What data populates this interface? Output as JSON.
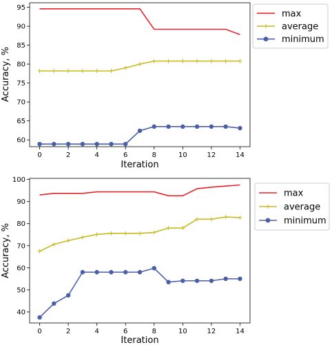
{
  "chart_data": [
    {
      "type": "line",
      "title": "",
      "xlabel": "Iteration",
      "ylabel": "Accuracy, %",
      "xlim": [
        -0.7,
        14.7
      ],
      "ylim": [
        58.2,
        96.2
      ],
      "xticks": [
        0,
        2,
        4,
        6,
        8,
        10,
        12,
        14
      ],
      "yticks": [
        60,
        65,
        70,
        75,
        80,
        85,
        90,
        95
      ],
      "legend": "top-right, outside",
      "grid": false,
      "x": [
        0,
        1,
        2,
        3,
        4,
        5,
        6,
        7,
        8,
        9,
        10,
        11,
        12,
        13,
        14
      ],
      "series": [
        {
          "name": "max",
          "color": "#e8222a",
          "marker": "none",
          "values": [
            94.6,
            94.6,
            94.6,
            94.6,
            94.6,
            94.6,
            94.6,
            94.6,
            89.2,
            89.2,
            89.2,
            89.2,
            89.2,
            89.2,
            87.8
          ]
        },
        {
          "name": "average",
          "color": "#c9b81e",
          "marker": "plus",
          "values": [
            78.2,
            78.2,
            78.2,
            78.2,
            78.2,
            78.2,
            79.0,
            80.0,
            80.8,
            80.8,
            80.8,
            80.8,
            80.8,
            80.8,
            80.8
          ]
        },
        {
          "name": "minimum",
          "color": "#4a5fa8",
          "marker": "circle",
          "values": [
            58.9,
            58.9,
            58.9,
            58.9,
            58.9,
            58.9,
            58.9,
            62.4,
            63.5,
            63.5,
            63.5,
            63.5,
            63.5,
            63.5,
            63.1
          ]
        }
      ]
    },
    {
      "type": "line",
      "title": "",
      "xlabel": "Iteration",
      "ylabel": "Accuracy, %",
      "xlim": [
        -0.7,
        14.7
      ],
      "ylim": [
        35.0,
        100.5
      ],
      "xticks": [
        0,
        2,
        4,
        6,
        8,
        10,
        12,
        14
      ],
      "yticks": [
        40,
        50,
        60,
        70,
        80,
        90,
        100
      ],
      "legend": "top-right, outside",
      "grid": false,
      "x": [
        0,
        1,
        2,
        3,
        4,
        5,
        6,
        7,
        8,
        9,
        10,
        11,
        12,
        13,
        14
      ],
      "series": [
        {
          "name": "max",
          "color": "#e8222a",
          "marker": "none",
          "values": [
            93.0,
            93.7,
            93.7,
            93.7,
            94.4,
            94.4,
            94.4,
            94.4,
            94.4,
            92.6,
            92.6,
            95.8,
            96.5,
            97.0,
            97.5
          ]
        },
        {
          "name": "average",
          "color": "#c9b81e",
          "marker": "plus",
          "values": [
            67.5,
            70.6,
            72.3,
            73.8,
            75.1,
            75.6,
            75.6,
            75.6,
            76.0,
            78.0,
            78.0,
            82.0,
            82.0,
            83.0,
            82.7
          ]
        },
        {
          "name": "minimum",
          "color": "#4a5fa8",
          "marker": "circle",
          "values": [
            37.5,
            43.8,
            47.5,
            58.0,
            58.0,
            58.0,
            58.0,
            58.0,
            59.8,
            53.5,
            54.1,
            54.1,
            54.1,
            55.0,
            55.0
          ]
        }
      ]
    }
  ]
}
